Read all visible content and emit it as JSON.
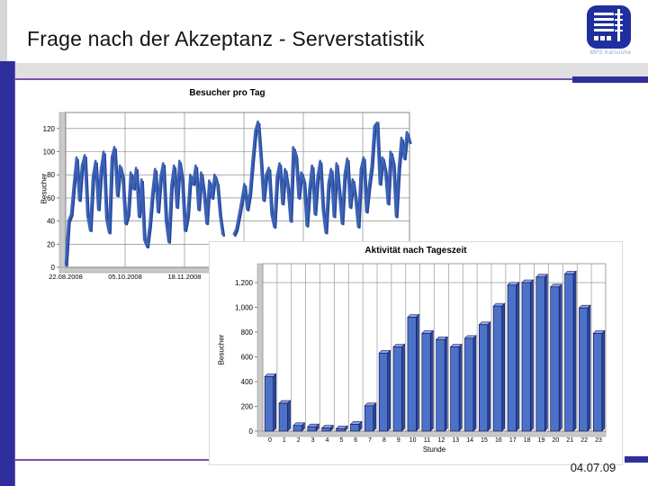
{
  "slide": {
    "title": "Frage nach der Akzeptanz - Serverstatistik",
    "footer_date": "04.07.09",
    "logo_caption": "MPS Karlsruhe",
    "colors": {
      "template_blue": "#2E2E9C",
      "accent_purple": "#7A54AD",
      "band_gray": "#E0E0E0",
      "bar_fill_blue": "#4C72C8",
      "line_blue": "#3C62B4"
    }
  },
  "chart_data": [
    {
      "type": "line",
      "title": "Besucher pro Tag",
      "xlabel": "",
      "ylabel": "Besucher",
      "x_tick_labels": [
        "22.08.2008",
        "05.10.2008",
        "18.11.2008"
      ],
      "y_ticks": [
        0,
        20,
        40,
        60,
        80,
        100,
        120
      ],
      "ylim": [
        0,
        133
      ],
      "grid": true,
      "values": [
        2,
        40,
        46,
        72,
        95,
        58,
        88,
        97,
        45,
        32,
        78,
        92,
        50,
        85,
        100,
        42,
        30,
        95,
        104,
        62,
        88,
        78,
        38,
        46,
        82,
        68,
        86,
        44,
        76,
        24,
        18,
        36,
        65,
        85,
        48,
        78,
        90,
        40,
        22,
        70,
        88,
        52,
        92,
        76,
        32,
        45,
        80,
        72,
        88,
        50,
        82,
        65,
        38,
        75,
        60,
        80,
        72,
        45,
        28,
        null,
        null,
        null,
        28,
        33,
        45,
        58,
        72,
        50,
        64,
        92,
        118,
        126,
        95,
        58,
        80,
        86,
        46,
        35,
        78,
        90,
        55,
        85,
        70,
        40,
        104,
        96,
        60,
        82,
        74,
        36,
        68,
        88,
        46,
        78,
        92,
        50,
        30,
        72,
        85,
        44,
        90,
        65,
        38,
        80,
        94,
        52,
        76,
        60,
        35,
        85,
        95,
        48,
        70,
        88,
        122,
        125,
        72,
        95,
        84,
        55,
        100,
        90,
        44,
        86,
        112,
        94,
        117,
        108
      ]
    },
    {
      "type": "bar",
      "title": "Aktivität nach Tageszeit",
      "xlabel": "Stunde",
      "ylabel": "Besucher",
      "categories": [
        "0",
        "1",
        "2",
        "3",
        "4",
        "5",
        "6",
        "7",
        "8",
        "9",
        "10",
        "11",
        "12",
        "13",
        "14",
        "15",
        "16",
        "17",
        "18",
        "19",
        "20",
        "21",
        "22",
        "23"
      ],
      "y_tick_labels": [
        "0",
        "200",
        "400",
        "600",
        "800",
        "1,000",
        "1,200"
      ],
      "y_ticks": [
        0,
        200,
        400,
        600,
        800,
        1000,
        1200
      ],
      "ylim": [
        0,
        1360
      ],
      "grid": true,
      "values": [
        440,
        225,
        45,
        35,
        25,
        20,
        55,
        205,
        630,
        680,
        920,
        790,
        740,
        680,
        750,
        860,
        1010,
        1180,
        1200,
        1245,
        1165,
        1270,
        995,
        790
      ]
    }
  ]
}
